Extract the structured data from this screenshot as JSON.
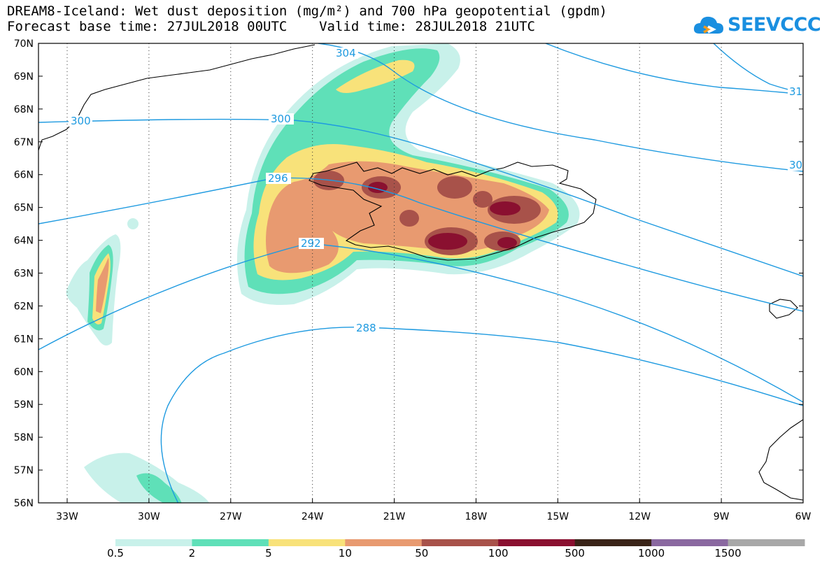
{
  "header": {
    "title_line1": "DREAM8-Iceland: Wet dust deposition (mg/m²) and 700 hPa geopotential (gpdm)",
    "title_line2": "Forecast base time: 27JUL2018 00UTC    Valid time: 28JUL2018 21UTC"
  },
  "logo": {
    "text": "SEEVCCC",
    "icon": "cloud-icon"
  },
  "axes": {
    "lat_labels": [
      "70N",
      "69N",
      "68N",
      "67N",
      "66N",
      "65N",
      "64N",
      "63N",
      "62N",
      "61N",
      "60N",
      "59N",
      "58N",
      "57N",
      "56N"
    ],
    "lon_labels": [
      "33W",
      "30W",
      "27W",
      "24W",
      "21W",
      "18W",
      "15W",
      "12W",
      "9W",
      "6W"
    ]
  },
  "contours": {
    "labels": [
      "304",
      "300",
      "300",
      "296",
      "292",
      "288",
      "31",
      "30"
    ],
    "color": "#1e9ae0"
  },
  "colorbar": {
    "labels": [
      "0.5",
      "2",
      "5",
      "10",
      "50",
      "100",
      "500",
      "1000",
      "1500"
    ],
    "colors": [
      "#c8f1ea",
      "#5fe0b8",
      "#f8e27a",
      "#e89a70",
      "#a8524a",
      "#8a1030",
      "#3a2418",
      "#8a68a0",
      "#a8a8a8"
    ]
  }
}
